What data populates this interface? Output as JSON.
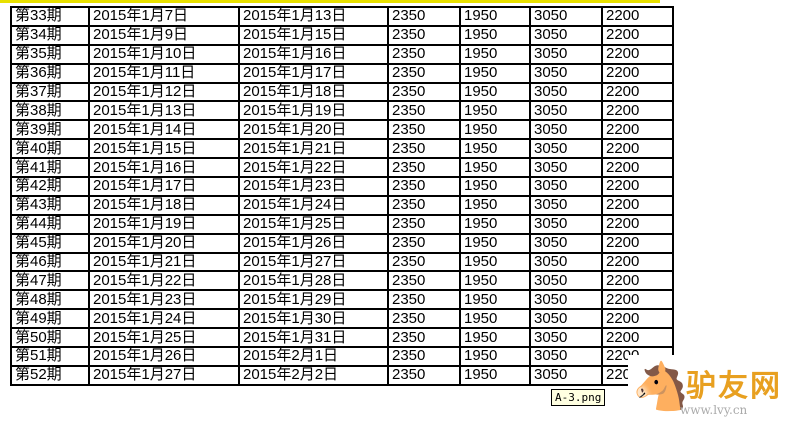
{
  "rows": [
    [
      "第33期",
      "2015年1月7日",
      "2015年1月13日",
      "2350",
      "1950",
      "3050",
      "2200"
    ],
    [
      "第34期",
      "2015年1月9日",
      "2015年1月15日",
      "2350",
      "1950",
      "3050",
      "2200"
    ],
    [
      "第35期",
      "2015年1月10日",
      "2015年1月16日",
      "2350",
      "1950",
      "3050",
      "2200"
    ],
    [
      "第36期",
      "2015年1月11日",
      "2015年1月17日",
      "2350",
      "1950",
      "3050",
      "2200"
    ],
    [
      "第37期",
      "2015年1月12日",
      "2015年1月18日",
      "2350",
      "1950",
      "3050",
      "2200"
    ],
    [
      "第38期",
      "2015年1月13日",
      "2015年1月19日",
      "2350",
      "1950",
      "3050",
      "2200"
    ],
    [
      "第39期",
      "2015年1月14日",
      "2015年1月20日",
      "2350",
      "1950",
      "3050",
      "2200"
    ],
    [
      "第40期",
      "2015年1月15日",
      "2015年1月21日",
      "2350",
      "1950",
      "3050",
      "2200"
    ],
    [
      "第41期",
      "2015年1月16日",
      "2015年1月22日",
      "2350",
      "1950",
      "3050",
      "2200"
    ],
    [
      "第42期",
      "2015年1月17日",
      "2015年1月23日",
      "2350",
      "1950",
      "3050",
      "2200"
    ],
    [
      "第43期",
      "2015年1月18日",
      "2015年1月24日",
      "2350",
      "1950",
      "3050",
      "2200"
    ],
    [
      "第44期",
      "2015年1月19日",
      "2015年1月25日",
      "2350",
      "1950",
      "3050",
      "2200"
    ],
    [
      "第45期",
      "2015年1月20日",
      "2015年1月26日",
      "2350",
      "1950",
      "3050",
      "2200"
    ],
    [
      "第46期",
      "2015年1月21日",
      "2015年1月27日",
      "2350",
      "1950",
      "3050",
      "2200"
    ],
    [
      "第47期",
      "2015年1月22日",
      "2015年1月28日",
      "2350",
      "1950",
      "3050",
      "2200"
    ],
    [
      "第48期",
      "2015年1月23日",
      "2015年1月29日",
      "2350",
      "1950",
      "3050",
      "2200"
    ],
    [
      "第49期",
      "2015年1月24日",
      "2015年1月30日",
      "2350",
      "1950",
      "3050",
      "2200"
    ],
    [
      "第50期",
      "2015年1月25日",
      "2015年1月31日",
      "2350",
      "1950",
      "3050",
      "2200"
    ],
    [
      "第51期",
      "2015年1月26日",
      "2015年2月1日",
      "2350",
      "1950",
      "3050",
      "2200"
    ],
    [
      "第52期",
      "2015年1月27日",
      "2015年2月2日",
      "2350",
      "1950",
      "3050",
      "2200"
    ]
  ],
  "tooltip": "A-3.png",
  "watermark": {
    "logo_text": "驴友网",
    "url": "www.lvy.cn"
  }
}
